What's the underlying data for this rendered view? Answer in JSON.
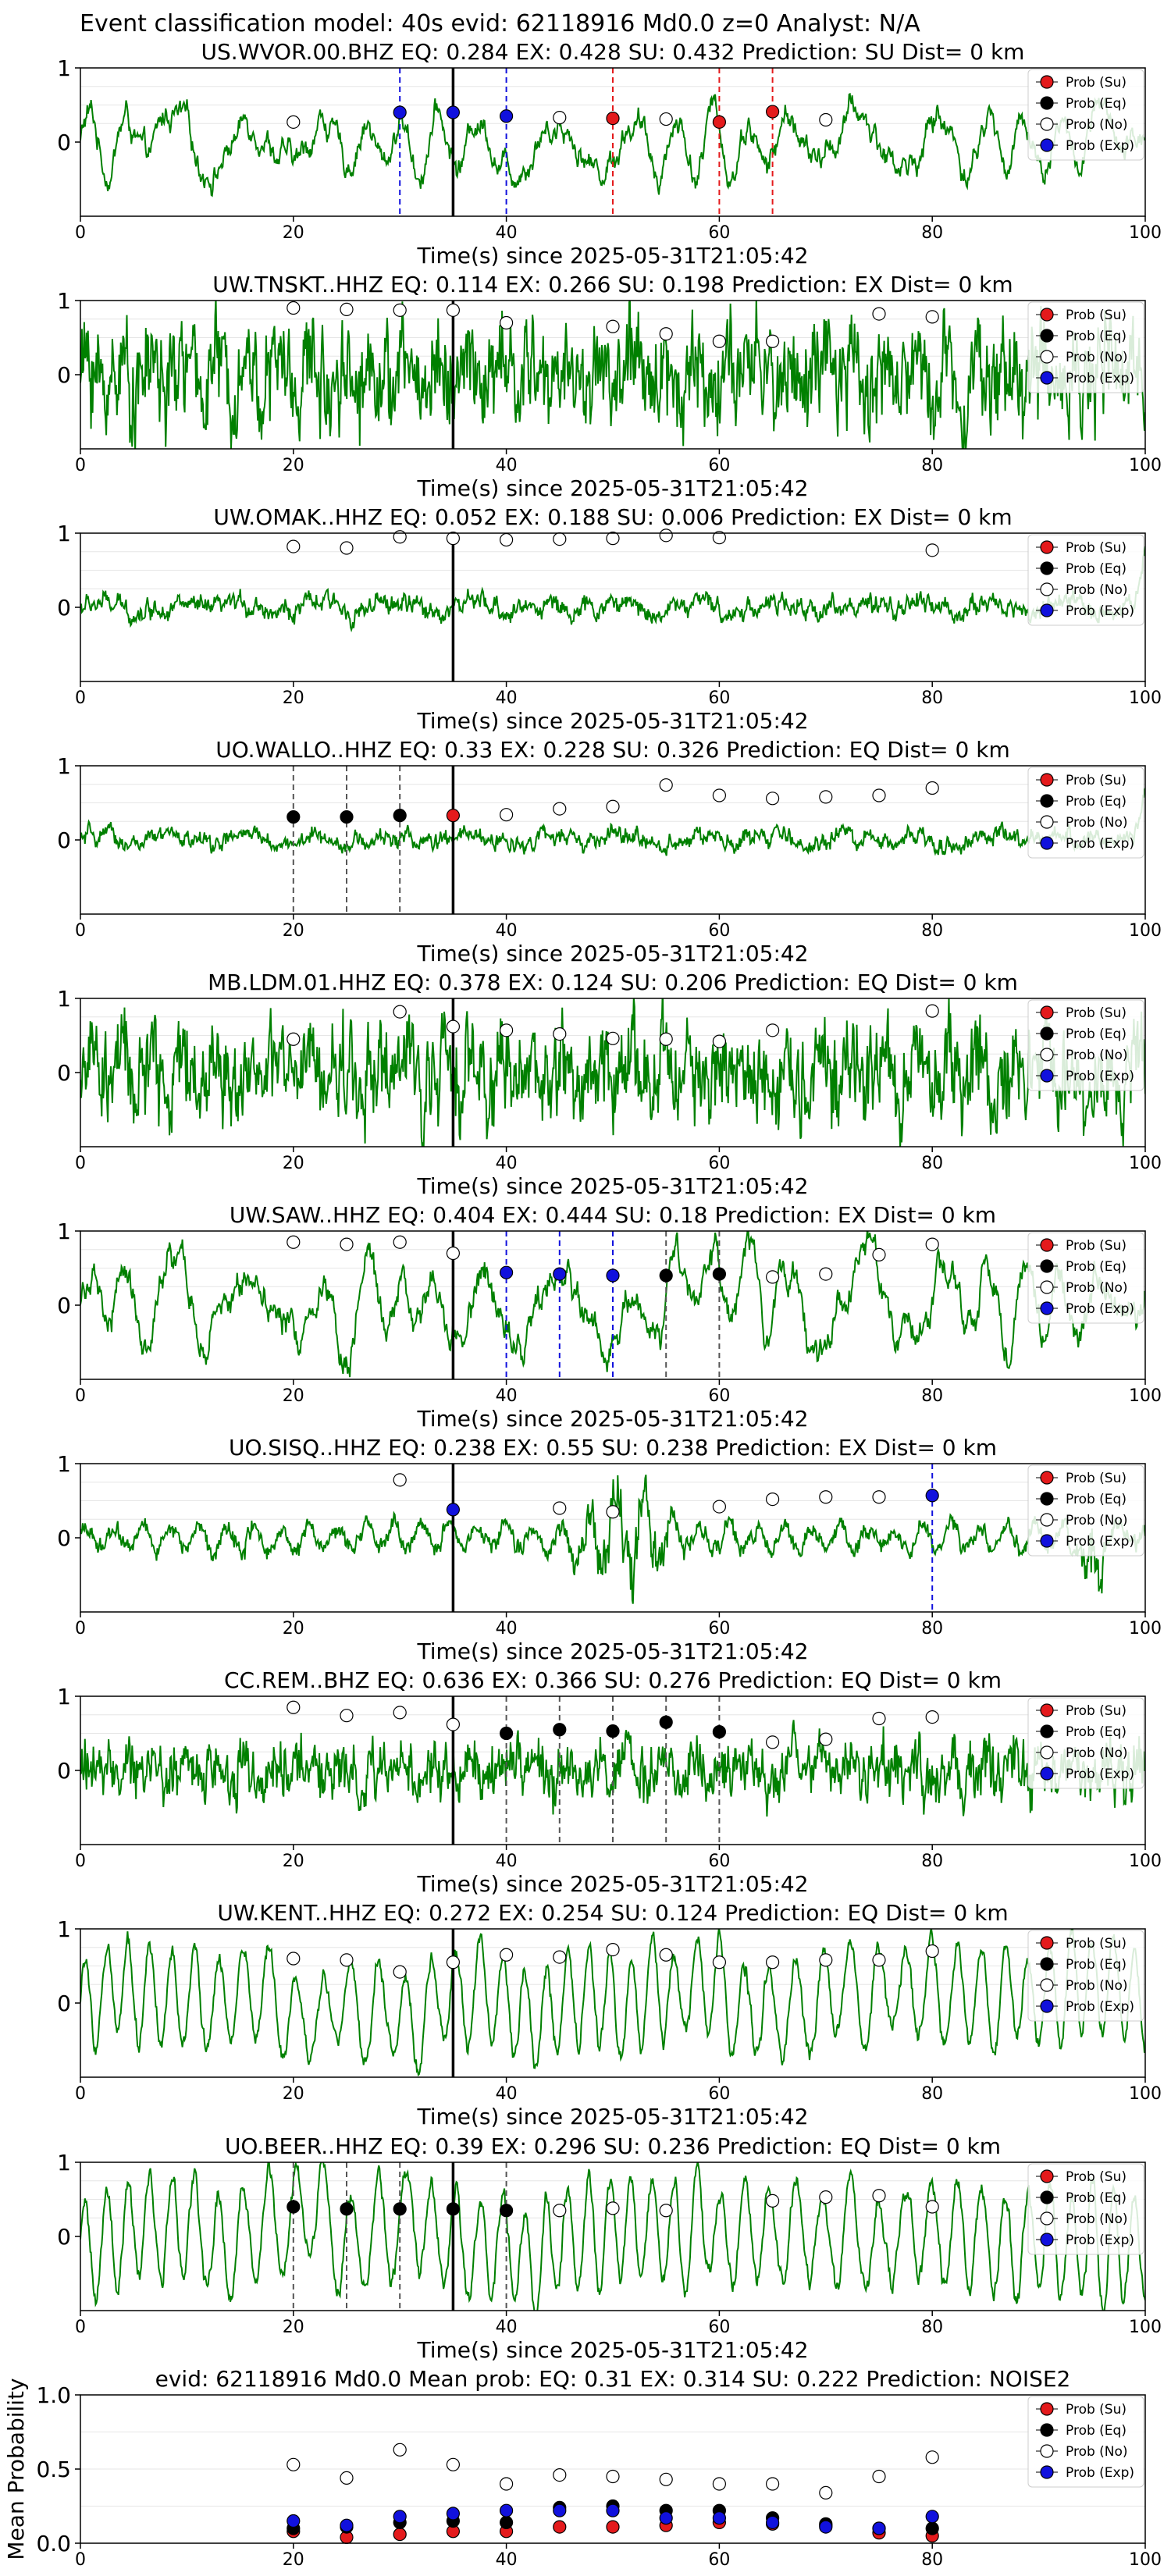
{
  "figure_title": "Event classification model: 40s evid: 62118916 Md0.0 z=0 Analyst: N/A",
  "colors": {
    "su": "#e41a1c",
    "eq": "#000000",
    "no": "#ffffff",
    "exp": "#1111dd",
    "trace": "#008000"
  },
  "legend_labels": [
    "Prob (Su)",
    "Prob (Eq)",
    "Prob (No)",
    "Prob (Exp)"
  ],
  "chart_data": [
    {
      "type": "line",
      "title": "US.WVOR.00.BHZ   EQ: 0.284  EX: 0.428  SU: 0.432   Prediction: SU    Dist= 0 km",
      "xlabel": "Time(s) since 2025-05-31T21:05:42",
      "ylabel": "",
      "xlim": [
        0,
        100
      ],
      "ylim": [
        -1,
        1
      ],
      "xticks": [
        0,
        20,
        40,
        60,
        80,
        100
      ],
      "yticks": [
        0,
        1
      ],
      "legend_position": "top-right",
      "style": "smooth",
      "amplitude": 0.6,
      "onset_time": 35,
      "dashed_lines": [
        {
          "x": 30,
          "color": "exp"
        },
        {
          "x": 40,
          "color": "exp"
        },
        {
          "x": 50,
          "color": "su"
        },
        {
          "x": 60,
          "color": "su"
        },
        {
          "x": 65,
          "color": "su"
        }
      ],
      "points": [
        {
          "x": 20,
          "y": 0.27,
          "class": "no"
        },
        {
          "x": 30,
          "y": 0.4,
          "class": "exp"
        },
        {
          "x": 35,
          "y": 0.4,
          "class": "exp"
        },
        {
          "x": 40,
          "y": 0.35,
          "class": "exp"
        },
        {
          "x": 45,
          "y": 0.33,
          "class": "no"
        },
        {
          "x": 50,
          "y": 0.32,
          "class": "su"
        },
        {
          "x": 55,
          "y": 0.31,
          "class": "no"
        },
        {
          "x": 60,
          "y": 0.27,
          "class": "su"
        },
        {
          "x": 65,
          "y": 0.41,
          "class": "su"
        },
        {
          "x": 70,
          "y": 0.3,
          "class": "no"
        }
      ]
    },
    {
      "type": "line",
      "title": "UW.TNSKT..HHZ   EQ: 0.114  EX: 0.266  SU: 0.198   Prediction: EX    Dist= 0 km",
      "xlabel": "Time(s) since 2025-05-31T21:05:42",
      "ylabel": "",
      "xlim": [
        0,
        100
      ],
      "ylim": [
        -1,
        1
      ],
      "xticks": [
        0,
        20,
        40,
        60,
        80,
        100
      ],
      "yticks": [
        0,
        1
      ],
      "legend_position": "top-right",
      "style": "noisy",
      "amplitude": 0.85,
      "onset_time": 35,
      "dashed_lines": [],
      "points": [
        {
          "x": 20,
          "y": 0.9,
          "class": "no"
        },
        {
          "x": 25,
          "y": 0.88,
          "class": "no"
        },
        {
          "x": 30,
          "y": 0.87,
          "class": "no"
        },
        {
          "x": 35,
          "y": 0.87,
          "class": "no"
        },
        {
          "x": 40,
          "y": 0.7,
          "class": "no"
        },
        {
          "x": 50,
          "y": 0.65,
          "class": "no"
        },
        {
          "x": 55,
          "y": 0.55,
          "class": "no"
        },
        {
          "x": 60,
          "y": 0.45,
          "class": "no"
        },
        {
          "x": 65,
          "y": 0.45,
          "class": "no"
        },
        {
          "x": 75,
          "y": 0.82,
          "class": "no"
        },
        {
          "x": 80,
          "y": 0.78,
          "class": "no"
        }
      ]
    },
    {
      "type": "line",
      "title": "UW.OMAK..HHZ   EQ: 0.052  EX: 0.188  SU: 0.006   Prediction: EX    Dist= 0 km",
      "xlabel": "Time(s) since 2025-05-31T21:05:42",
      "ylabel": "",
      "xlim": [
        0,
        100
      ],
      "ylim": [
        -1,
        1
      ],
      "xticks": [
        0,
        20,
        40,
        60,
        80,
        100
      ],
      "yticks": [
        0,
        1
      ],
      "legend_position": "top-right",
      "style": "quiet",
      "amplitude": 0.25,
      "onset_time": 35,
      "dashed_lines": [],
      "points": [
        {
          "x": 20,
          "y": 0.82,
          "class": "no"
        },
        {
          "x": 25,
          "y": 0.8,
          "class": "no"
        },
        {
          "x": 30,
          "y": 0.95,
          "class": "no"
        },
        {
          "x": 35,
          "y": 0.93,
          "class": "no"
        },
        {
          "x": 40,
          "y": 0.91,
          "class": "no"
        },
        {
          "x": 45,
          "y": 0.92,
          "class": "no"
        },
        {
          "x": 50,
          "y": 0.93,
          "class": "no"
        },
        {
          "x": 55,
          "y": 0.97,
          "class": "no"
        },
        {
          "x": 60,
          "y": 0.94,
          "class": "no"
        },
        {
          "x": 80,
          "y": 0.77,
          "class": "no"
        }
      ]
    },
    {
      "type": "line",
      "title": "UO.WALLO..HHZ   EQ: 0.33  EX: 0.228  SU: 0.326   Prediction: EQ    Dist= 0 km",
      "xlabel": "Time(s) since 2025-05-31T21:05:42",
      "ylabel": "",
      "xlim": [
        0,
        100
      ],
      "ylim": [
        -1,
        1
      ],
      "xticks": [
        0,
        20,
        40,
        60,
        80,
        100
      ],
      "yticks": [
        0,
        1
      ],
      "legend_position": "top-right",
      "style": "quiet",
      "amplitude": 0.22,
      "onset_time": 35,
      "dashed_lines": [
        {
          "x": 20,
          "color": "eq"
        },
        {
          "x": 25,
          "color": "eq"
        },
        {
          "x": 30,
          "color": "eq"
        }
      ],
      "points": [
        {
          "x": 20,
          "y": 0.31,
          "class": "eq"
        },
        {
          "x": 25,
          "y": 0.31,
          "class": "eq"
        },
        {
          "x": 30,
          "y": 0.33,
          "class": "eq"
        },
        {
          "x": 35,
          "y": 0.33,
          "class": "su"
        },
        {
          "x": 40,
          "y": 0.34,
          "class": "no"
        },
        {
          "x": 45,
          "y": 0.42,
          "class": "no"
        },
        {
          "x": 50,
          "y": 0.45,
          "class": "no"
        },
        {
          "x": 55,
          "y": 0.74,
          "class": "no"
        },
        {
          "x": 60,
          "y": 0.6,
          "class": "no"
        },
        {
          "x": 65,
          "y": 0.56,
          "class": "no"
        },
        {
          "x": 70,
          "y": 0.58,
          "class": "no"
        },
        {
          "x": 75,
          "y": 0.6,
          "class": "no"
        },
        {
          "x": 80,
          "y": 0.7,
          "class": "no"
        }
      ]
    },
    {
      "type": "line",
      "title": "MB.LDM.01.HHZ   EQ: 0.378  EX: 0.124  SU: 0.206   Prediction: EQ    Dist= 0 km",
      "xlabel": "Time(s) since 2025-05-31T21:05:42",
      "ylabel": "",
      "xlim": [
        0,
        100
      ],
      "ylim": [
        -1,
        1
      ],
      "xticks": [
        0,
        20,
        40,
        60,
        80,
        100
      ],
      "yticks": [
        0,
        1
      ],
      "legend_position": "top-right",
      "style": "noisy",
      "amplitude": 0.8,
      "onset_time": 35,
      "dashed_lines": [],
      "points": [
        {
          "x": 20,
          "y": 0.45,
          "class": "no"
        },
        {
          "x": 30,
          "y": 0.82,
          "class": "no"
        },
        {
          "x": 35,
          "y": 0.62,
          "class": "no"
        },
        {
          "x": 40,
          "y": 0.57,
          "class": "no"
        },
        {
          "x": 45,
          "y": 0.52,
          "class": "no"
        },
        {
          "x": 50,
          "y": 0.46,
          "class": "no"
        },
        {
          "x": 55,
          "y": 0.45,
          "class": "no"
        },
        {
          "x": 60,
          "y": 0.42,
          "class": "no"
        },
        {
          "x": 65,
          "y": 0.57,
          "class": "no"
        },
        {
          "x": 80,
          "y": 0.83,
          "class": "no"
        }
      ]
    },
    {
      "type": "line",
      "title": "UW.SAW..HHZ   EQ: 0.404  EX: 0.444  SU: 0.18   Prediction: EX    Dist= 0 km",
      "xlabel": "Time(s) since 2025-05-31T21:05:42",
      "ylabel": "",
      "xlim": [
        0,
        100
      ],
      "ylim": [
        -1,
        1
      ],
      "xticks": [
        0,
        20,
        40,
        60,
        80,
        100
      ],
      "yticks": [
        0,
        1
      ],
      "legend_position": "top-right",
      "style": "smooth",
      "amplitude": 0.75,
      "onset_time": 35,
      "dashed_lines": [
        {
          "x": 40,
          "color": "exp"
        },
        {
          "x": 45,
          "color": "exp"
        },
        {
          "x": 50,
          "color": "exp"
        },
        {
          "x": 55,
          "color": "eq"
        },
        {
          "x": 60,
          "color": "eq"
        }
      ],
      "points": [
        {
          "x": 20,
          "y": 0.85,
          "class": "no"
        },
        {
          "x": 25,
          "y": 0.82,
          "class": "no"
        },
        {
          "x": 30,
          "y": 0.85,
          "class": "no"
        },
        {
          "x": 35,
          "y": 0.7,
          "class": "no"
        },
        {
          "x": 40,
          "y": 0.44,
          "class": "exp"
        },
        {
          "x": 45,
          "y": 0.42,
          "class": "exp"
        },
        {
          "x": 50,
          "y": 0.4,
          "class": "exp"
        },
        {
          "x": 55,
          "y": 0.4,
          "class": "eq"
        },
        {
          "x": 60,
          "y": 0.42,
          "class": "eq"
        },
        {
          "x": 65,
          "y": 0.38,
          "class": "no"
        },
        {
          "x": 70,
          "y": 0.42,
          "class": "no"
        },
        {
          "x": 75,
          "y": 0.68,
          "class": "no"
        },
        {
          "x": 80,
          "y": 0.82,
          "class": "no"
        }
      ]
    },
    {
      "type": "line",
      "title": "UO.SISQ..HHZ   EQ: 0.238  EX: 0.55  SU: 0.238   Prediction: EX    Dist= 0 km",
      "xlabel": "Time(s) since 2025-05-31T21:05:42",
      "ylabel": "",
      "xlim": [
        0,
        100
      ],
      "ylim": [
        -1,
        1
      ],
      "xticks": [
        0,
        20,
        40,
        60,
        80,
        100
      ],
      "yticks": [
        0,
        1
      ],
      "legend_position": "top-right",
      "style": "burst",
      "amplitude": 0.35,
      "onset_time": 35,
      "dashed_lines": [
        {
          "x": 80,
          "color": "exp"
        }
      ],
      "points": [
        {
          "x": 30,
          "y": 0.78,
          "class": "no"
        },
        {
          "x": 35,
          "y": 0.38,
          "class": "exp"
        },
        {
          "x": 45,
          "y": 0.4,
          "class": "no"
        },
        {
          "x": 50,
          "y": 0.35,
          "class": "no"
        },
        {
          "x": 60,
          "y": 0.42,
          "class": "no"
        },
        {
          "x": 65,
          "y": 0.52,
          "class": "no"
        },
        {
          "x": 70,
          "y": 0.55,
          "class": "no"
        },
        {
          "x": 75,
          "y": 0.55,
          "class": "no"
        },
        {
          "x": 80,
          "y": 0.57,
          "class": "exp"
        }
      ]
    },
    {
      "type": "line",
      "title": "CC.REM..BHZ   EQ: 0.636  EX: 0.366  SU: 0.276   Prediction: EQ    Dist= 0 km",
      "xlabel": "Time(s) since 2025-05-31T21:05:42",
      "ylabel": "",
      "xlim": [
        0,
        100
      ],
      "ylim": [
        -1,
        1
      ],
      "xticks": [
        0,
        20,
        40,
        60,
        80,
        100
      ],
      "yticks": [
        0,
        1
      ],
      "legend_position": "top-right",
      "style": "noisy",
      "amplitude": 0.5,
      "onset_time": 35,
      "dashed_lines": [
        {
          "x": 40,
          "color": "eq"
        },
        {
          "x": 45,
          "color": "eq"
        },
        {
          "x": 50,
          "color": "eq"
        },
        {
          "x": 55,
          "color": "eq"
        },
        {
          "x": 60,
          "color": "eq"
        }
      ],
      "points": [
        {
          "x": 20,
          "y": 0.85,
          "class": "no"
        },
        {
          "x": 25,
          "y": 0.74,
          "class": "no"
        },
        {
          "x": 30,
          "y": 0.78,
          "class": "no"
        },
        {
          "x": 35,
          "y": 0.62,
          "class": "no"
        },
        {
          "x": 40,
          "y": 0.5,
          "class": "eq"
        },
        {
          "x": 45,
          "y": 0.55,
          "class": "eq"
        },
        {
          "x": 50,
          "y": 0.53,
          "class": "eq"
        },
        {
          "x": 55,
          "y": 0.65,
          "class": "eq"
        },
        {
          "x": 60,
          "y": 0.52,
          "class": "eq"
        },
        {
          "x": 65,
          "y": 0.38,
          "class": "no"
        },
        {
          "x": 70,
          "y": 0.42,
          "class": "no"
        },
        {
          "x": 75,
          "y": 0.7,
          "class": "no"
        },
        {
          "x": 80,
          "y": 0.72,
          "class": "no"
        }
      ]
    },
    {
      "type": "line",
      "title": "UW.KENT..HHZ   EQ: 0.272  EX: 0.254  SU: 0.124   Prediction: EQ    Dist= 0 km",
      "xlabel": "Time(s) since 2025-05-31T21:05:42",
      "ylabel": "",
      "xlim": [
        0,
        100
      ],
      "ylim": [
        -1,
        1
      ],
      "xticks": [
        0,
        20,
        40,
        60,
        80,
        100
      ],
      "yticks": [
        0,
        1
      ],
      "legend_position": "top-right",
      "style": "wave",
      "amplitude": 0.75,
      "onset_time": 35,
      "dashed_lines": [],
      "points": [
        {
          "x": 20,
          "y": 0.6,
          "class": "no"
        },
        {
          "x": 25,
          "y": 0.58,
          "class": "no"
        },
        {
          "x": 30,
          "y": 0.42,
          "class": "no"
        },
        {
          "x": 35,
          "y": 0.55,
          "class": "no"
        },
        {
          "x": 40,
          "y": 0.65,
          "class": "no"
        },
        {
          "x": 45,
          "y": 0.62,
          "class": "no"
        },
        {
          "x": 50,
          "y": 0.72,
          "class": "no"
        },
        {
          "x": 55,
          "y": 0.65,
          "class": "no"
        },
        {
          "x": 60,
          "y": 0.55,
          "class": "no"
        },
        {
          "x": 65,
          "y": 0.55,
          "class": "no"
        },
        {
          "x": 70,
          "y": 0.58,
          "class": "no"
        },
        {
          "x": 75,
          "y": 0.58,
          "class": "no"
        },
        {
          "x": 80,
          "y": 0.7,
          "class": "no"
        }
      ]
    },
    {
      "type": "line",
      "title": "UO.BEER..HHZ   EQ: 0.39  EX: 0.296  SU: 0.236   Prediction: EQ    Dist= 0 km",
      "xlabel": "Time(s) since 2025-05-31T21:05:42",
      "ylabel": "",
      "xlim": [
        0,
        100
      ],
      "ylim": [
        -1,
        1
      ],
      "xticks": [
        0,
        20,
        40,
        60,
        80,
        100
      ],
      "yticks": [
        0,
        1
      ],
      "legend_position": "top-right",
      "style": "wave",
      "amplitude": 0.8,
      "onset_time": 35,
      "dashed_lines": [
        {
          "x": 20,
          "color": "eq"
        },
        {
          "x": 25,
          "color": "eq"
        },
        {
          "x": 30,
          "color": "eq"
        },
        {
          "x": 40,
          "color": "eq"
        }
      ],
      "points": [
        {
          "x": 20,
          "y": 0.4,
          "class": "eq"
        },
        {
          "x": 25,
          "y": 0.37,
          "class": "eq"
        },
        {
          "x": 30,
          "y": 0.37,
          "class": "eq"
        },
        {
          "x": 35,
          "y": 0.37,
          "class": "eq"
        },
        {
          "x": 40,
          "y": 0.35,
          "class": "eq"
        },
        {
          "x": 45,
          "y": 0.35,
          "class": "no"
        },
        {
          "x": 50,
          "y": 0.38,
          "class": "no"
        },
        {
          "x": 55,
          "y": 0.35,
          "class": "no"
        },
        {
          "x": 65,
          "y": 0.48,
          "class": "no"
        },
        {
          "x": 70,
          "y": 0.53,
          "class": "no"
        },
        {
          "x": 75,
          "y": 0.55,
          "class": "no"
        },
        {
          "x": 80,
          "y": 0.4,
          "class": "no"
        }
      ]
    },
    {
      "type": "scatter",
      "title": "evid: 62118916  Md0.0   Mean prob:   EQ: 0.31  EX: 0.314  SU: 0.222   Prediction: NOISE2",
      "xlabel": "",
      "ylabel": "Mean Probability",
      "xlim": [
        0,
        100
      ],
      "ylim": [
        0,
        1
      ],
      "xticks": [
        0,
        20,
        40,
        60,
        80,
        100
      ],
      "yticks": [
        0.0,
        0.5,
        1.0
      ],
      "legend_position": "top-right",
      "grid": true,
      "x": [
        20,
        25,
        30,
        35,
        40,
        45,
        50,
        55,
        60,
        65,
        70,
        75,
        80
      ],
      "series": [
        {
          "class": "su",
          "values": [
            0.08,
            0.04,
            0.06,
            0.08,
            0.08,
            0.11,
            0.11,
            0.12,
            0.14,
            0.13,
            0.12,
            0.07,
            0.05
          ]
        },
        {
          "class": "eq",
          "values": [
            0.1,
            0.11,
            0.14,
            0.15,
            0.14,
            0.24,
            0.25,
            0.22,
            0.22,
            0.17,
            0.13,
            0.1,
            0.1
          ]
        },
        {
          "class": "no",
          "values": [
            0.53,
            0.44,
            0.63,
            0.53,
            0.4,
            0.46,
            0.45,
            0.43,
            0.4,
            0.4,
            0.34,
            0.45,
            0.58
          ]
        },
        {
          "class": "exp",
          "values": [
            0.15,
            0.12,
            0.18,
            0.2,
            0.22,
            0.22,
            0.22,
            0.17,
            0.17,
            0.14,
            0.11,
            0.1,
            0.18
          ]
        }
      ]
    }
  ]
}
